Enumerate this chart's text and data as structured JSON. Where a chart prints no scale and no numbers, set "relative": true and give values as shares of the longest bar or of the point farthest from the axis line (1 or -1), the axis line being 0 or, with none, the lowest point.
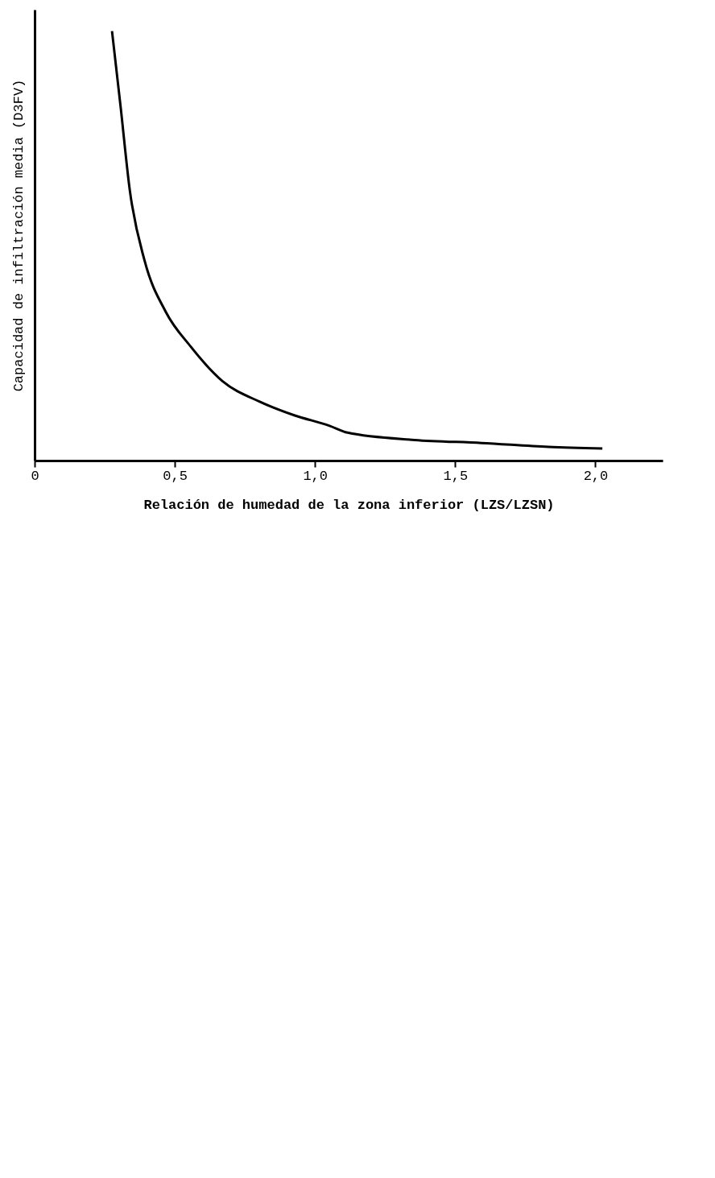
{
  "chart_data": {
    "type": "line",
    "relative": true,
    "xlabel": "Relación de humedad de la zona inferior (LZS/LZSN)",
    "ylabel": "Capacidad de infiltración media (D3FV)",
    "x": [
      0.276,
      0.306,
      0.34,
      0.392,
      0.468,
      0.556,
      0.67,
      0.803,
      0.928,
      1.052,
      1.116,
      1.355,
      1.594,
      1.833,
      2.025
    ],
    "series": [
      {
        "color": "#000000",
        "values": [
          1.0,
          0.828,
          0.627,
          0.466,
          0.346,
          0.266,
          0.185,
          0.137,
          0.105,
          0.081,
          0.065,
          0.048,
          0.041,
          0.032,
          0.028
        ]
      }
    ],
    "xlim": [
      0,
      2.24
    ],
    "xticks": [
      0,
      {
        "value": 0.5,
        "label": "0,5"
      },
      {
        "value": 1.0,
        "label": "1,0"
      },
      {
        "value": 1.5,
        "label": "1,5"
      },
      {
        "value": 2.0,
        "label": "2,0"
      }
    ],
    "grid": false,
    "legend": false,
    "marker": "none",
    "line_style": "solid"
  }
}
